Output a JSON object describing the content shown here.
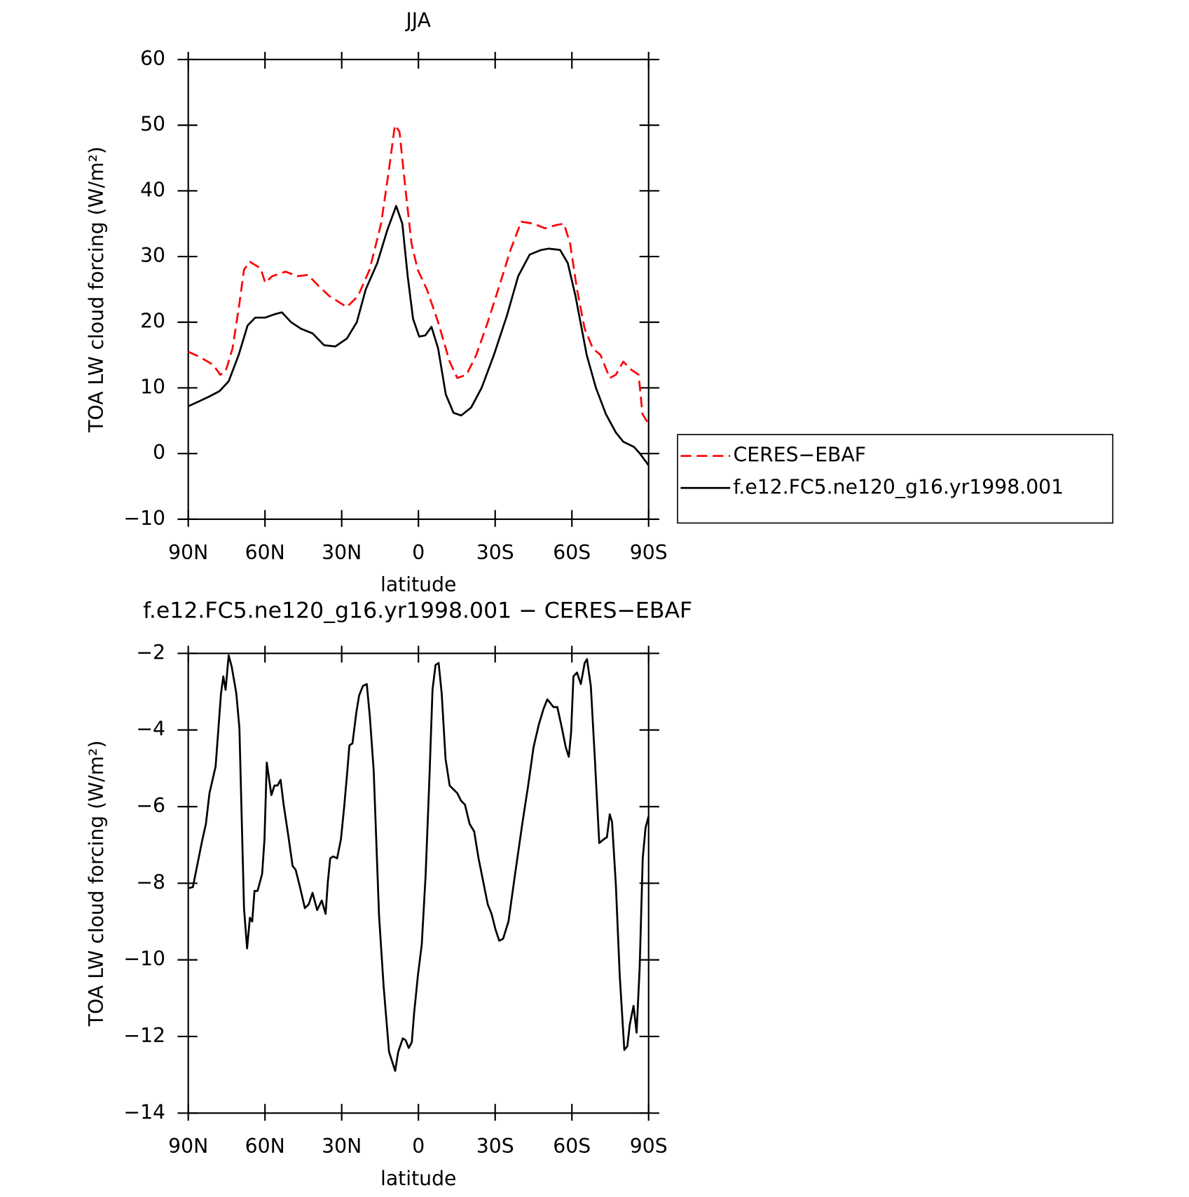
{
  "chart_data": [
    {
      "type": "line",
      "title": "JJA",
      "xlabel": "latitude",
      "ylabel": "TOA LW cloud forcing (W/m²)",
      "xlim": [
        90,
        -90
      ],
      "xticks": [
        {
          "value": 90,
          "label": "90N"
        },
        {
          "value": 60,
          "label": "60N"
        },
        {
          "value": 30,
          "label": "30N"
        },
        0,
        {
          "value": -30,
          "label": "30S"
        },
        {
          "value": -60,
          "label": "60S"
        },
        {
          "value": -90,
          "label": "90S"
        }
      ],
      "ylim": [
        -10,
        60
      ],
      "yticks": [
        {
          "value": -10,
          "label": "−10"
        },
        0,
        10,
        20,
        30,
        40,
        50,
        60
      ],
      "legend": "right",
      "series": [
        {
          "name": "CERES−EBAF",
          "color": "#ff0000",
          "dash": "dashed",
          "x": [
            90,
            85.5,
            80.2,
            77.5,
            75.4,
            72.7,
            70.3,
            68.2,
            65.9,
            61.7,
            59.9,
            57.2,
            51.9,
            47.4,
            43.2,
            39,
            34.9,
            28,
            23.6,
            19.1,
            14.6,
            11.6,
            9.2,
            7.4,
            5,
            2.7,
            0.3,
            -3.3,
            -7.7,
            -12.2,
            -15.2,
            -18.8,
            -22.6,
            -27.1,
            -31.6,
            -36,
            -40.2,
            -45,
            -49.5,
            -54,
            -56.9,
            -59.3,
            -62,
            -65,
            -68.2,
            -71.2,
            -74.8,
            -77.2,
            -80.1,
            -83.1,
            -86.1,
            -87.6,
            -90
          ],
          "values": [
            15.5,
            14.7,
            13.5,
            12,
            12.5,
            16,
            22,
            28,
            29.2,
            28.2,
            26,
            27,
            27.7,
            27,
            27.2,
            25.5,
            24,
            22.3,
            24,
            28,
            35,
            43,
            50,
            49,
            40,
            32,
            28,
            25,
            20,
            14,
            11.5,
            12,
            15,
            20,
            25.5,
            31,
            35.3,
            35,
            34.3,
            34.8,
            35,
            32,
            25,
            19,
            16,
            15,
            11.5,
            12,
            14,
            12.8,
            12,
            6,
            4.5
          ]
        },
        {
          "name": "f.e12.FC5.ne120_g16.yr1998.001",
          "color": "#000000",
          "dash": "solid",
          "x": [
            90,
            85.5,
            81.7,
            77.8,
            74.2,
            70.3,
            66.8,
            63.8,
            59.9,
            56.3,
            53.4,
            49.8,
            45.9,
            41.4,
            36.9,
            32.5,
            28,
            24.1,
            20.6,
            16.1,
            12.2,
            8.7,
            6.3,
            4.2,
            2.1,
            -0.3,
            -2.7,
            -5.1,
            -7.7,
            -10.7,
            -13.7,
            -16.7,
            -20.6,
            -24.7,
            -29.5,
            -34.6,
            -39,
            -43.5,
            -48,
            -50.9,
            -55.4,
            -58.4,
            -61.4,
            -65.8,
            -69.4,
            -73.3,
            -77.2,
            -80.1,
            -84.3,
            -86.6,
            -90
          ],
          "values": [
            7.2,
            8,
            8.7,
            9.5,
            11,
            15,
            19.5,
            20.7,
            20.7,
            21.2,
            21.5,
            20,
            19,
            18.3,
            16.5,
            16.3,
            17.5,
            20,
            25,
            29,
            34,
            37.7,
            35,
            27,
            20.5,
            17.8,
            18,
            19.3,
            16,
            9,
            6.2,
            5.8,
            7,
            10,
            15,
            21,
            27,
            30.3,
            31,
            31.2,
            31,
            29,
            24,
            15,
            10,
            6,
            3.2,
            1.8,
            1,
            0,
            -1.8
          ]
        }
      ]
    },
    {
      "type": "line",
      "title": "f.e12.FC5.ne120_g16.yr1998.001 − CERES−EBAF",
      "xlabel": "latitude",
      "ylabel": "TOA LW cloud forcing (W/m²)",
      "xlim": [
        90,
        -90
      ],
      "xticks": [
        {
          "value": 90,
          "label": "90N"
        },
        {
          "value": 60,
          "label": "60N"
        },
        {
          "value": 30,
          "label": "30N"
        },
        0,
        {
          "value": -30,
          "label": "30S"
        },
        {
          "value": -60,
          "label": "60S"
        },
        {
          "value": -90,
          "label": "90S"
        }
      ],
      "ylim": [
        -14,
        -2
      ],
      "yticks": [
        {
          "value": -14,
          "label": "−14"
        },
        {
          "value": -12,
          "label": "−12"
        },
        {
          "value": -10,
          "label": "−10"
        },
        {
          "value": -8,
          "label": "−8"
        },
        {
          "value": -6,
          "label": "−6"
        },
        {
          "value": -4,
          "label": "−4"
        },
        {
          "value": -2,
          "label": "−2"
        }
      ],
      "color": "#000000",
      "x": [
        90,
        88.2,
        86.1,
        84.6,
        83.1,
        81.7,
        79.3,
        77.2,
        76.3,
        75.4,
        74.2,
        73,
        71.2,
        70,
        68.2,
        67,
        65.9,
        65,
        64.1,
        62.9,
        61.1,
        60.2,
        59.3,
        57.5,
        56.3,
        55.1,
        53.9,
        52.7,
        50.9,
        49.2,
        48,
        46.5,
        44.4,
        42.9,
        41.4,
        39.6,
        37.8,
        36.3,
        35.4,
        34.5,
        33.3,
        31.8,
        30.3,
        29.1,
        27.9,
        27,
        25.8,
        24.3,
        23.2,
        21.7,
        20.2,
        19,
        17.5,
        15.4,
        13.6,
        11.5,
        10.3,
        9.1,
        7.9,
        6.1,
        5,
        3.8,
        2.6,
        1.7,
        0.2,
        -1.3,
        -2.8,
        -4.3,
        -5.5,
        -6.7,
        -7.9,
        -9.1,
        -10.6,
        -12.2,
        -13.7,
        -15.2,
        -16.7,
        -18.2,
        -20,
        -21.8,
        -23.5,
        -25.3,
        -27.1,
        -28.6,
        -30.1,
        -31.6,
        -33.1,
        -35.2,
        -37.6,
        -40.6,
        -42.9,
        -45,
        -47.1,
        -48.9,
        -50.4,
        -51.6,
        -52.8,
        -54.3,
        -56.1,
        -57.6,
        -58.8,
        -59.7,
        -60.6,
        -62,
        -63.5,
        -65,
        -65.9,
        -67.4,
        -68.9,
        -70.7,
        -72.5,
        -73.7,
        -74.8,
        -75.7,
        -77.2,
        -78.7,
        -80.5,
        -81.7,
        -82.6,
        -84.1,
        -85.3,
        -86.5,
        -87.7,
        -88.8,
        -90
      ],
      "values": [
        -8.13,
        -8.1,
        -7.4,
        -6.9,
        -6.45,
        -5.65,
        -4.95,
        -3.05,
        -2.6,
        -2.95,
        -2.05,
        -2.35,
        -3.05,
        -3.95,
        -8.65,
        -9.7,
        -8.9,
        -9.0,
        -8.2,
        -8.2,
        -7.75,
        -6.85,
        -4.85,
        -5.7,
        -5.45,
        -5.45,
        -5.3,
        -5.95,
        -6.75,
        -7.55,
        -7.65,
        -8.05,
        -8.65,
        -8.55,
        -8.25,
        -8.7,
        -8.45,
        -8.8,
        -7.95,
        -7.35,
        -7.3,
        -7.35,
        -6.85,
        -6.05,
        -5.15,
        -4.4,
        -4.35,
        -3.55,
        -3.1,
        -2.85,
        -2.8,
        -3.65,
        -5.05,
        -8.85,
        -10.7,
        -12.4,
        -12.65,
        -12.9,
        -12.4,
        -12.05,
        -12.1,
        -12.3,
        -12.15,
        -11.4,
        -10.4,
        -9.6,
        -7.8,
        -5.25,
        -2.95,
        -2.3,
        -2.25,
        -3.05,
        -4.75,
        -5.45,
        -5.55,
        -5.65,
        -5.85,
        -5.95,
        -6.45,
        -6.65,
        -7.35,
        -7.95,
        -8.55,
        -8.8,
        -9.2,
        -9.5,
        -9.45,
        -9.0,
        -7.85,
        -6.45,
        -5.45,
        -4.45,
        -3.85,
        -3.45,
        -3.2,
        -3.3,
        -3.4,
        -3.4,
        -3.95,
        -4.45,
        -4.7,
        -4.05,
        -2.6,
        -2.5,
        -2.8,
        -2.25,
        -2.15,
        -2.85,
        -4.65,
        -6.95,
        -6.85,
        -6.8,
        -6.2,
        -6.4,
        -8.05,
        -10.4,
        -12.35,
        -12.25,
        -11.7,
        -11.2,
        -11.9,
        -10.2,
        -7.35,
        -6.55,
        -6.25
      ]
    }
  ]
}
